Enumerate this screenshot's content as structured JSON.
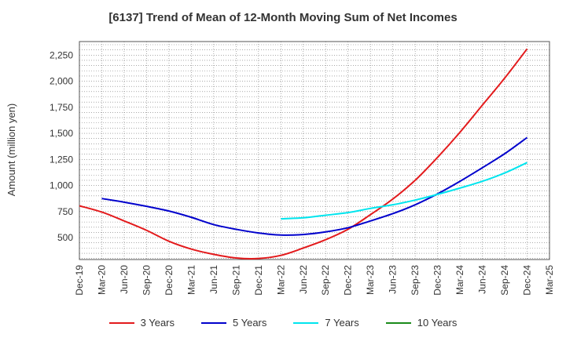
{
  "chart_data": {
    "type": "line",
    "title": "[6137]  Trend of Mean of 12-Month Moving Sum of Net Incomes",
    "xlabel": "",
    "ylabel": "Amount (million yen)",
    "ylim": [
      290,
      2380
    ],
    "yticks": [
      500,
      750,
      1000,
      1250,
      1500,
      1750,
      2000,
      2250
    ],
    "ytick_labels": [
      "500",
      "750",
      "1,000",
      "1,250",
      "1,500",
      "1,750",
      "2,000",
      "2,250"
    ],
    "xticks": [
      "Dec-19",
      "Mar-20",
      "Jun-20",
      "Sep-20",
      "Dec-20",
      "Mar-21",
      "Jun-21",
      "Sep-21",
      "Dec-21",
      "Mar-22",
      "Jun-22",
      "Sep-22",
      "Dec-22",
      "Mar-23",
      "Jun-23",
      "Sep-23",
      "Dec-23",
      "Mar-24",
      "Jun-24",
      "Sep-24",
      "Dec-24",
      "Mar-25"
    ],
    "grid": true,
    "legend_position": "bottom",
    "series": [
      {
        "name": "3 Years",
        "color": "#e31a1c",
        "x": [
          "Dec-19",
          "Mar-20",
          "Jun-20",
          "Sep-20",
          "Dec-20",
          "Mar-21",
          "Jun-21",
          "Sep-21",
          "Dec-21",
          "Mar-22",
          "Jun-22",
          "Sep-22",
          "Dec-22",
          "Mar-23",
          "Jun-23",
          "Sep-23",
          "Dec-23",
          "Mar-24",
          "Jun-24",
          "Sep-24",
          "Dec-24"
        ],
        "values": [
          805,
          745,
          660,
          570,
          465,
          390,
          340,
          305,
          300,
          330,
          400,
          480,
          580,
          720,
          870,
          1050,
          1270,
          1510,
          1770,
          2030,
          2310
        ]
      },
      {
        "name": "5 Years",
        "color": "#0000cc",
        "x": [
          "Mar-20",
          "Jun-20",
          "Sep-20",
          "Dec-20",
          "Mar-21",
          "Jun-21",
          "Sep-21",
          "Dec-21",
          "Mar-22",
          "Jun-22",
          "Sep-22",
          "Dec-22",
          "Mar-23",
          "Jun-23",
          "Sep-23",
          "Dec-23",
          "Mar-24",
          "Jun-24",
          "Sep-24",
          "Dec-24"
        ],
        "values": [
          875,
          840,
          800,
          755,
          695,
          625,
          580,
          545,
          525,
          530,
          555,
          595,
          660,
          730,
          815,
          920,
          1040,
          1170,
          1305,
          1460
        ]
      },
      {
        "name": "7 Years",
        "color": "#00e5ee",
        "x": [
          "Mar-22",
          "Jun-22",
          "Sep-22",
          "Dec-22",
          "Mar-23",
          "Jun-23",
          "Sep-23",
          "Dec-23",
          "Mar-24",
          "Jun-24",
          "Sep-24",
          "Dec-24"
        ],
        "values": [
          680,
          690,
          715,
          740,
          780,
          815,
          860,
          915,
          975,
          1040,
          1120,
          1220
        ]
      },
      {
        "name": "10 Years",
        "color": "#1a8a1a",
        "x": [],
        "values": []
      }
    ]
  }
}
